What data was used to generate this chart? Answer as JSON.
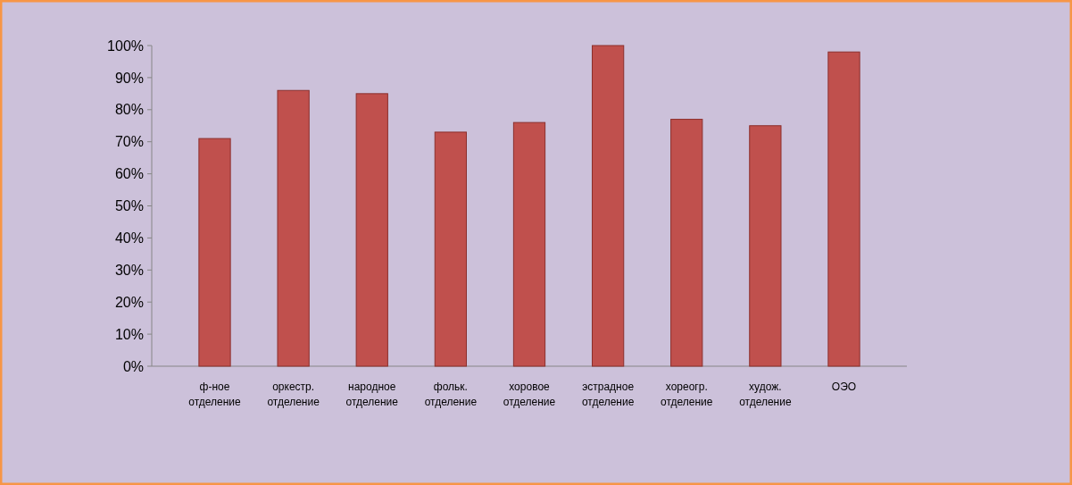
{
  "chart_data": {
    "type": "bar",
    "categories": [
      "ф-ное отделение",
      "оркестр. отделение",
      "народное отделение",
      "фольк. отделение",
      "хоровое отделение",
      "эстрадное отделение",
      "хореогр. отделение",
      "худож. отделение",
      "ОЭО"
    ],
    "values": [
      71,
      86,
      85,
      73,
      76,
      100,
      77,
      75,
      98
    ],
    "color": "#c0504d",
    "ylim": [
      0,
      100
    ],
    "yticks": [
      {
        "value": 0,
        "label": "0%"
      },
      {
        "value": 10,
        "label": "10%"
      },
      {
        "value": 20,
        "label": "20%"
      },
      {
        "value": 30,
        "label": "30%"
      },
      {
        "value": 40,
        "label": "40%"
      },
      {
        "value": 50,
        "label": "50%"
      },
      {
        "value": 60,
        "label": "60%"
      },
      {
        "value": 70,
        "label": "70%"
      },
      {
        "value": 80,
        "label": "80%"
      },
      {
        "value": 90,
        "label": "90%"
      },
      {
        "value": 100,
        "label": "100%"
      }
    ],
    "grid": false
  }
}
